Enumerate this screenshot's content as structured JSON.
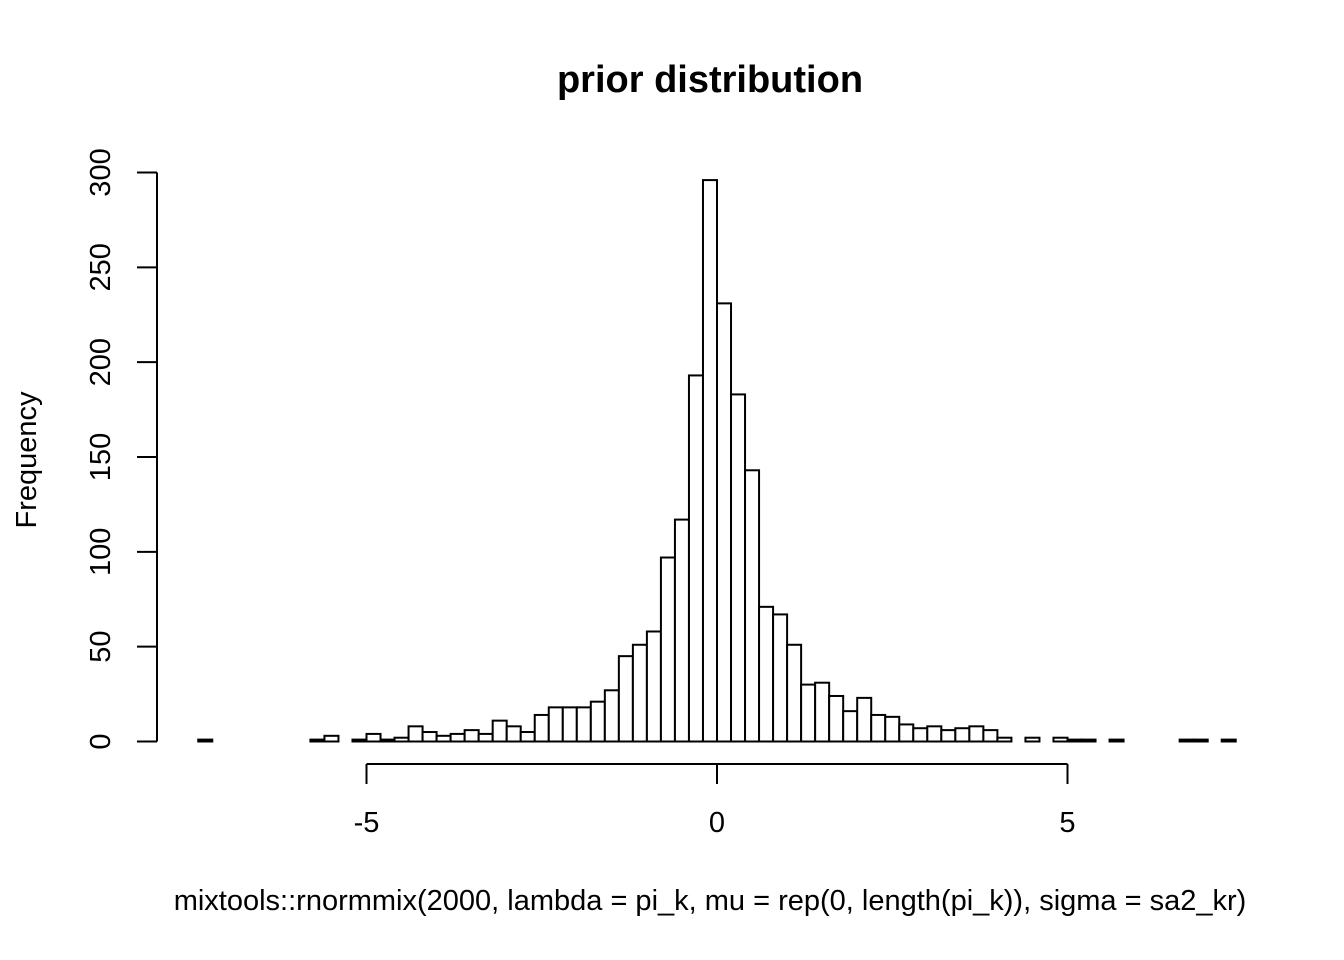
{
  "chart_data": {
    "type": "bar",
    "title": "prior distribution",
    "xlabel": "mixtools::rnormmix(2000, lambda = pi_k, mu = rep(0, length(pi_k)), sigma = sa2_kr)",
    "ylabel": "Frequency",
    "bin_width": 0.2,
    "xlim": [
      -5,
      5
    ],
    "ylim": [
      0,
      300
    ],
    "x_ticks": [
      -5,
      0,
      5
    ],
    "x_tick_labels": [
      "-5",
      "0",
      "5"
    ],
    "y_ticks": [
      0,
      50,
      100,
      150,
      200,
      250,
      300
    ],
    "y_tick_labels": [
      "0",
      "50",
      "100",
      "150",
      "200",
      "250",
      "300"
    ],
    "grid": false,
    "bins": [
      {
        "x0": -7.4,
        "x1": -7.2,
        "count": 1
      },
      {
        "x0": -7.2,
        "x1": -7.0,
        "count": 0
      },
      {
        "x0": -7.0,
        "x1": -6.8,
        "count": 0
      },
      {
        "x0": -6.8,
        "x1": -6.6,
        "count": 0
      },
      {
        "x0": -6.6,
        "x1": -6.4,
        "count": 0
      },
      {
        "x0": -6.4,
        "x1": -6.2,
        "count": 0
      },
      {
        "x0": -6.2,
        "x1": -6.0,
        "count": 0
      },
      {
        "x0": -6.0,
        "x1": -5.8,
        "count": 0
      },
      {
        "x0": -5.8,
        "x1": -5.6,
        "count": 1
      },
      {
        "x0": -5.6,
        "x1": -5.4,
        "count": 3
      },
      {
        "x0": -5.4,
        "x1": -5.2,
        "count": 0
      },
      {
        "x0": -5.2,
        "x1": -5.0,
        "count": 1
      },
      {
        "x0": -5.0,
        "x1": -4.8,
        "count": 4
      },
      {
        "x0": -4.8,
        "x1": -4.6,
        "count": 1
      },
      {
        "x0": -4.6,
        "x1": -4.4,
        "count": 2
      },
      {
        "x0": -4.4,
        "x1": -4.2,
        "count": 8
      },
      {
        "x0": -4.2,
        "x1": -4.0,
        "count": 5
      },
      {
        "x0": -4.0,
        "x1": -3.8,
        "count": 3
      },
      {
        "x0": -3.8,
        "x1": -3.6,
        "count": 4
      },
      {
        "x0": -3.6,
        "x1": -3.4,
        "count": 6
      },
      {
        "x0": -3.4,
        "x1": -3.2,
        "count": 4
      },
      {
        "x0": -3.2,
        "x1": -3.0,
        "count": 11
      },
      {
        "x0": -3.0,
        "x1": -2.8,
        "count": 8
      },
      {
        "x0": -2.8,
        "x1": -2.6,
        "count": 5
      },
      {
        "x0": -2.6,
        "x1": -2.4,
        "count": 14
      },
      {
        "x0": -2.4,
        "x1": -2.2,
        "count": 18
      },
      {
        "x0": -2.2,
        "x1": -2.0,
        "count": 18
      },
      {
        "x0": -2.0,
        "x1": -1.8,
        "count": 18
      },
      {
        "x0": -1.8,
        "x1": -1.6,
        "count": 21
      },
      {
        "x0": -1.6,
        "x1": -1.4,
        "count": 27
      },
      {
        "x0": -1.4,
        "x1": -1.2,
        "count": 45
      },
      {
        "x0": -1.2,
        "x1": -1.0,
        "count": 51
      },
      {
        "x0": -1.0,
        "x1": -0.8,
        "count": 58
      },
      {
        "x0": -0.8,
        "x1": -0.6,
        "count": 97
      },
      {
        "x0": -0.6,
        "x1": -0.4,
        "count": 117
      },
      {
        "x0": -0.4,
        "x1": -0.2,
        "count": 193
      },
      {
        "x0": -0.2,
        "x1": 0.0,
        "count": 296
      },
      {
        "x0": 0.0,
        "x1": 0.2,
        "count": 231
      },
      {
        "x0": 0.2,
        "x1": 0.4,
        "count": 183
      },
      {
        "x0": 0.4,
        "x1": 0.6,
        "count": 143
      },
      {
        "x0": 0.6,
        "x1": 0.8,
        "count": 71
      },
      {
        "x0": 0.8,
        "x1": 1.0,
        "count": 67
      },
      {
        "x0": 1.0,
        "x1": 1.2,
        "count": 51
      },
      {
        "x0": 1.2,
        "x1": 1.4,
        "count": 30
      },
      {
        "x0": 1.4,
        "x1": 1.6,
        "count": 31
      },
      {
        "x0": 1.6,
        "x1": 1.8,
        "count": 24
      },
      {
        "x0": 1.8,
        "x1": 2.0,
        "count": 16
      },
      {
        "x0": 2.0,
        "x1": 2.2,
        "count": 23
      },
      {
        "x0": 2.2,
        "x1": 2.4,
        "count": 14
      },
      {
        "x0": 2.4,
        "x1": 2.6,
        "count": 13
      },
      {
        "x0": 2.6,
        "x1": 2.8,
        "count": 9
      },
      {
        "x0": 2.8,
        "x1": 3.0,
        "count": 7
      },
      {
        "x0": 3.0,
        "x1": 3.2,
        "count": 8
      },
      {
        "x0": 3.2,
        "x1": 3.4,
        "count": 6
      },
      {
        "x0": 3.4,
        "x1": 3.6,
        "count": 7
      },
      {
        "x0": 3.6,
        "x1": 3.8,
        "count": 8
      },
      {
        "x0": 3.8,
        "x1": 4.0,
        "count": 6
      },
      {
        "x0": 4.0,
        "x1": 4.2,
        "count": 2
      },
      {
        "x0": 4.2,
        "x1": 4.4,
        "count": 0
      },
      {
        "x0": 4.4,
        "x1": 4.6,
        "count": 2
      },
      {
        "x0": 4.6,
        "x1": 4.8,
        "count": 0
      },
      {
        "x0": 4.8,
        "x1": 5.0,
        "count": 2
      },
      {
        "x0": 5.0,
        "x1": 5.2,
        "count": 1
      },
      {
        "x0": 5.2,
        "x1": 5.4,
        "count": 1
      },
      {
        "x0": 5.4,
        "x1": 5.6,
        "count": 0
      },
      {
        "x0": 5.6,
        "x1": 5.8,
        "count": 1
      },
      {
        "x0": 5.8,
        "x1": 6.0,
        "count": 0
      },
      {
        "x0": 6.0,
        "x1": 6.2,
        "count": 0
      },
      {
        "x0": 6.2,
        "x1": 6.4,
        "count": 0
      },
      {
        "x0": 6.4,
        "x1": 6.6,
        "count": 0
      },
      {
        "x0": 6.6,
        "x1": 6.8,
        "count": 1
      },
      {
        "x0": 6.8,
        "x1": 7.0,
        "count": 1
      },
      {
        "x0": 7.0,
        "x1": 7.2,
        "count": 0
      },
      {
        "x0": 7.2,
        "x1": 7.4,
        "count": 1
      }
    ]
  }
}
